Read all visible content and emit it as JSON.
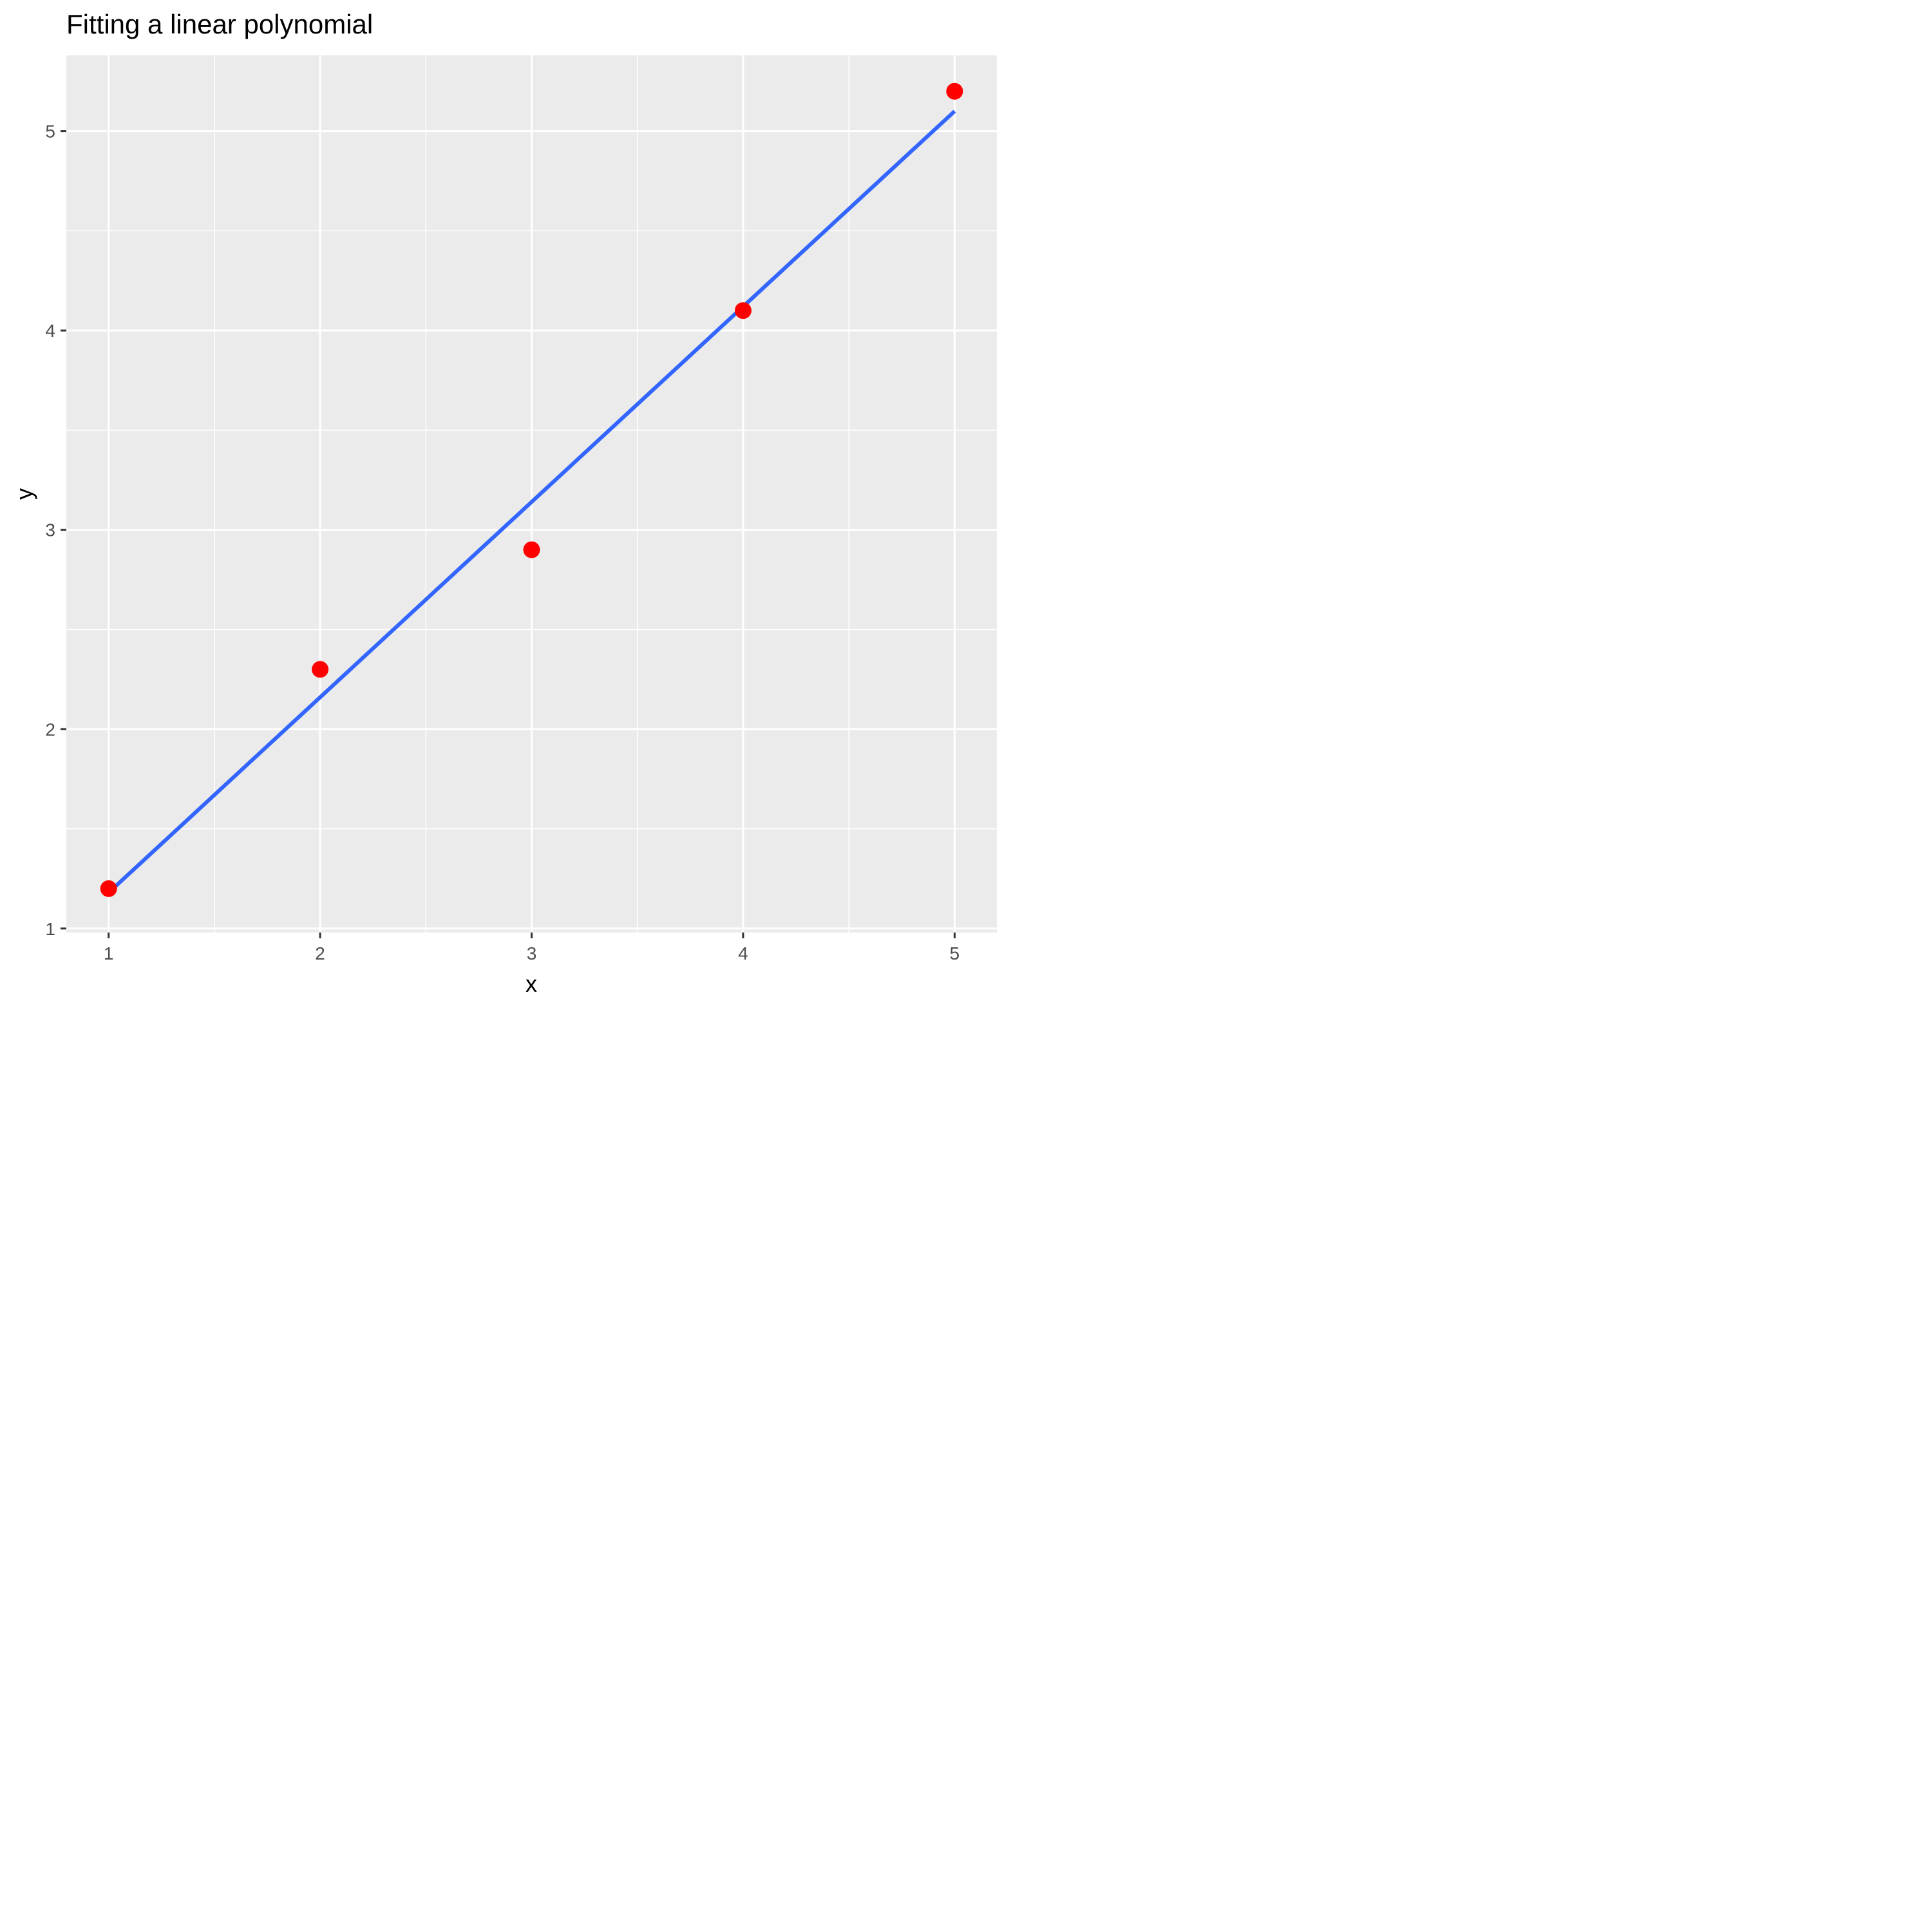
{
  "chart_data": {
    "type": "scatter",
    "title": "Fitting a linear polynomial",
    "xlabel": "x",
    "ylabel": "y",
    "xlim": [
      0.8,
      5.2
    ],
    "ylim": [
      0.98,
      5.38
    ],
    "x_ticks": [
      1,
      2,
      3,
      4,
      5
    ],
    "y_ticks": [
      1,
      2,
      3,
      4,
      5
    ],
    "x_tick_labels": [
      "1",
      "2",
      "3",
      "4",
      "5"
    ],
    "y_tick_labels": [
      "1",
      "2",
      "3",
      "4",
      "5"
    ],
    "grid": true,
    "background": "#ebebeb",
    "series": [
      {
        "type": "scatter",
        "color": "#ff0000",
        "x": [
          1,
          2,
          3,
          4,
          5
        ],
        "y": [
          1.2,
          2.3,
          2.9,
          4.1,
          5.2
        ]
      },
      {
        "type": "line",
        "color": "#3366ff",
        "x": [
          1,
          5
        ],
        "y": [
          1.18,
          5.1
        ]
      }
    ]
  }
}
